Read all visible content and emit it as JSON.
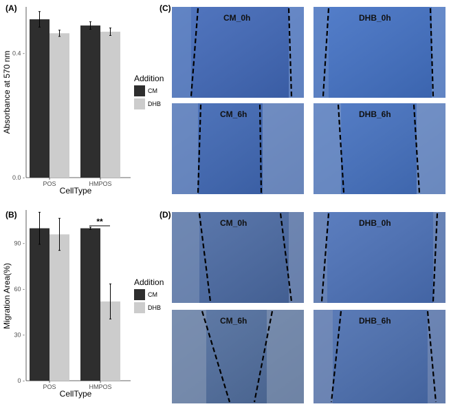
{
  "chart_data": [
    {
      "panel": "(A)",
      "type": "bar",
      "categories": [
        "POS",
        "HMPOS"
      ],
      "series": [
        {
          "name": "CM",
          "color": "#2e2e2e",
          "values": [
            0.51,
            0.49
          ],
          "errors": [
            0.025,
            0.012
          ]
        },
        {
          "name": "DHB",
          "color": "#cccccc",
          "values": [
            0.465,
            0.47
          ],
          "errors": [
            0.01,
            0.012
          ]
        }
      ],
      "xlabel": "CellType",
      "ylabel": "Absorbance at 570 nm",
      "ylim": [
        0,
        0.55
      ],
      "yticks": [
        0.0,
        0.4
      ],
      "ytick_labels": [
        "0.0 -",
        "0.4 -"
      ],
      "grid": false,
      "legend_title": "Addition",
      "legend_position": "right"
    },
    {
      "panel": "(B)",
      "type": "bar",
      "categories": [
        "POS",
        "HMPOS"
      ],
      "series": [
        {
          "name": "CM",
          "color": "#2e2e2e",
          "values": [
            100,
            100
          ],
          "errors": [
            10.5,
            0.7
          ]
        },
        {
          "name": "DHB",
          "color": "#cccccc",
          "values": [
            96,
            52
          ],
          "errors": [
            10.5,
            11.5
          ]
        }
      ],
      "xlabel": "CellType",
      "ylabel": "Migration Area(%)",
      "ylim": [
        0,
        112
      ],
      "yticks": [
        0,
        30,
        60,
        90
      ],
      "ytick_labels": [
        "0 -",
        "30 -",
        "60 -",
        "90 -"
      ],
      "annotation": "**",
      "grid": false,
      "legend_title": "Addition",
      "legend_position": "right"
    }
  ],
  "images": {
    "C": {
      "panel": "(C)",
      "tiles": [
        {
          "label": "CM_0h",
          "tint": "#3f67b8"
        },
        {
          "label": "DHB_0h",
          "tint": "#4170c4"
        },
        {
          "label": "CM_6h",
          "tint": "#3d66b4"
        },
        {
          "label": "DHB_6h",
          "tint": "#4370c0"
        }
      ]
    },
    "D": {
      "panel": "(D)",
      "tiles": [
        {
          "label": "CM_0h",
          "tint": "#4a6aa4"
        },
        {
          "label": "DHB_0h",
          "tint": "#4a70b8"
        },
        {
          "label": "CM_6h",
          "tint": "#4f6d9e"
        },
        {
          "label": "DHB_6h",
          "tint": "#4a6eb0"
        }
      ]
    }
  }
}
